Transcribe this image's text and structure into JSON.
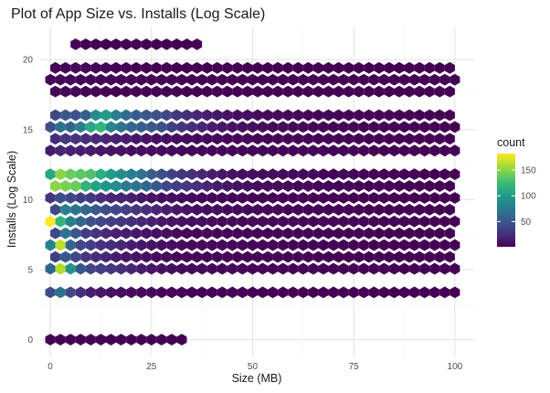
{
  "chart_data": {
    "type": "hexbin",
    "title": "Plot of App Size vs. Installs (Log Scale)",
    "xlabel": "Size (MB)",
    "ylabel": "Installs (Log Scale)",
    "xlim": [
      -2.5,
      105
    ],
    "ylim": [
      -1.2,
      22.3
    ],
    "x_ticks": [
      0,
      25,
      50,
      75,
      100
    ],
    "y_ticks": [
      0,
      5,
      10,
      15,
      20
    ],
    "grid": true,
    "legend": {
      "title": "count",
      "position": "right",
      "range": [
        1,
        182
      ],
      "ticks": [
        50,
        100,
        150
      ]
    },
    "hex_grid": {
      "x0": 0,
      "dx": 2.5,
      "y0": 0.0,
      "dy": 0.8438
    },
    "colors": {
      "viridis": [
        "#440154",
        "#482878",
        "#3e4989",
        "#31688e",
        "#26828e",
        "#1f9e89",
        "#35b779",
        "#6ece58",
        "#b5de2b",
        "#fde725"
      ],
      "grid_major": "#e3e3e3",
      "grid_minor": "#f3f3f3",
      "text": "#1a1a1a",
      "tick_text": "#4d4d4d"
    },
    "rows": [
      {
        "row": 0,
        "counts": [
          3,
          2,
          2,
          2,
          1,
          1,
          1,
          1,
          1,
          1,
          1,
          1,
          1,
          1,
          0,
          0,
          0,
          0,
          0,
          0,
          0,
          0,
          0,
          0,
          0,
          0,
          0,
          0,
          0,
          0,
          0,
          0,
          0,
          0,
          0,
          0,
          0,
          0,
          0,
          0,
          0,
          0,
          0,
          0,
          0,
          0
        ]
      },
      {
        "row": 4,
        "counts": [
          45,
          70,
          40,
          25,
          15,
          12,
          10,
          8,
          6,
          5,
          4,
          3,
          3,
          3,
          2,
          2,
          2,
          2,
          2,
          2,
          1,
          1,
          1,
          1,
          1,
          1,
          1,
          1,
          1,
          1,
          1,
          1,
          1,
          1,
          1,
          1,
          1,
          1,
          1,
          1,
          1,
          1,
          1,
          1,
          1,
          1
        ]
      },
      {
        "row": 6,
        "counts": [
          60,
          160,
          95,
          50,
          40,
          35,
          30,
          25,
          20,
          15,
          12,
          10,
          8,
          7,
          6,
          5,
          5,
          4,
          4,
          4,
          3,
          3,
          3,
          3,
          2,
          2,
          2,
          2,
          2,
          2,
          2,
          2,
          2,
          2,
          1,
          1,
          1,
          1,
          1,
          1,
          1,
          1,
          1,
          1,
          1,
          1
        ]
      },
      {
        "row": 7,
        "counts": [
          35,
          50,
          40,
          30,
          25,
          20,
          15,
          12,
          10,
          8,
          6,
          5,
          4,
          4,
          3,
          3,
          3,
          3,
          2,
          2,
          2,
          2,
          2,
          2,
          2,
          1,
          1,
          1,
          1,
          1,
          1,
          1,
          1,
          1,
          1,
          1,
          1,
          1,
          1,
          1,
          1,
          1,
          0,
          0,
          0,
          0
        ]
      },
      {
        "row": 8,
        "counts": [
          80,
          165,
          60,
          40,
          35,
          28,
          24,
          20,
          16,
          12,
          10,
          8,
          7,
          6,
          5,
          5,
          4,
          4,
          4,
          3,
          3,
          3,
          3,
          2,
          2,
          2,
          2,
          2,
          2,
          2,
          1,
          1,
          1,
          1,
          1,
          1,
          1,
          1,
          1,
          1,
          1,
          1,
          1,
          1,
          1,
          1
        ]
      },
      {
        "row": 9,
        "counts": [
          40,
          70,
          50,
          35,
          28,
          22,
          18,
          15,
          12,
          10,
          8,
          7,
          6,
          5,
          4,
          4,
          3,
          3,
          3,
          3,
          2,
          2,
          2,
          2,
          2,
          2,
          1,
          1,
          1,
          1,
          1,
          1,
          1,
          1,
          1,
          1,
          1,
          1,
          1,
          1,
          1,
          1,
          1,
          1,
          1,
          0
        ]
      },
      {
        "row": 10,
        "counts": [
          182,
          120,
          80,
          60,
          45,
          40,
          35,
          30,
          25,
          20,
          16,
          12,
          10,
          9,
          8,
          7,
          6,
          5,
          5,
          4,
          4,
          4,
          3,
          3,
          3,
          3,
          2,
          2,
          2,
          2,
          2,
          2,
          2,
          1,
          1,
          1,
          1,
          1,
          1,
          1,
          1,
          1,
          1,
          1,
          1,
          1
        ]
      },
      {
        "row": 11,
        "counts": [
          40,
          80,
          70,
          60,
          50,
          45,
          40,
          35,
          30,
          25,
          20,
          15,
          12,
          10,
          8,
          7,
          6,
          5,
          5,
          4,
          4,
          4,
          3,
          3,
          3,
          3,
          2,
          2,
          2,
          2,
          2,
          1,
          1,
          1,
          1,
          1,
          1,
          1,
          1,
          1,
          1,
          1,
          1,
          1,
          1,
          1
        ]
      },
      {
        "row": 12,
        "counts": [
          30,
          45,
          40,
          35,
          30,
          25,
          20,
          18,
          15,
          12,
          10,
          8,
          7,
          6,
          5,
          4,
          4,
          4,
          3,
          3,
          3,
          2,
          2,
          2,
          2,
          2,
          2,
          2,
          2,
          1,
          1,
          1,
          1,
          1,
          1,
          1,
          1,
          1,
          1,
          1,
          1,
          1,
          1,
          1,
          1,
          1
        ]
      },
      {
        "row": 13,
        "counts": [
          150,
          145,
          140,
          120,
          105,
          95,
          90,
          75,
          70,
          60,
          50,
          40,
          35,
          30,
          25,
          20,
          15,
          12,
          10,
          8,
          7,
          6,
          5,
          5,
          4,
          4,
          3,
          3,
          3,
          3,
          2,
          2,
          2,
          2,
          2,
          2,
          2,
          1,
          1,
          1,
          1,
          1,
          1,
          1,
          1,
          1
        ]
      },
      {
        "row": 14,
        "counts": [
          110,
          150,
          140,
          135,
          130,
          115,
          100,
          90,
          80,
          70,
          55,
          45,
          35,
          30,
          25,
          20,
          15,
          12,
          10,
          8,
          7,
          6,
          6,
          5,
          5,
          4,
          4,
          3,
          3,
          3,
          2,
          2,
          2,
          2,
          2,
          2,
          2,
          1,
          1,
          1,
          1,
          1,
          1,
          1,
          1,
          1
        ]
      },
      {
        "row": 16,
        "counts": [
          15,
          20,
          18,
          16,
          14,
          12,
          10,
          9,
          8,
          7,
          6,
          5,
          5,
          4,
          4,
          4,
          3,
          3,
          3,
          3,
          2,
          2,
          2,
          2,
          2,
          2,
          2,
          2,
          2,
          2,
          2,
          1,
          1,
          1,
          1,
          1,
          1,
          1,
          1,
          1,
          1,
          1,
          1,
          1,
          1,
          1
        ]
      },
      {
        "row": 17,
        "counts": [
          25,
          30,
          28,
          25,
          22,
          20,
          18,
          15,
          12,
          10,
          8,
          7,
          6,
          5,
          5,
          4,
          4,
          3,
          3,
          3,
          3,
          2,
          2,
          2,
          2,
          2,
          2,
          2,
          2,
          2,
          1,
          1,
          1,
          1,
          1,
          1,
          1,
          1,
          1,
          1,
          1,
          1,
          1,
          1,
          1,
          1
        ]
      },
      {
        "row": 18,
        "counts": [
          45,
          65,
          60,
          80,
          110,
          120,
          85,
          70,
          60,
          55,
          50,
          45,
          35,
          30,
          25,
          20,
          15,
          12,
          10,
          8,
          7,
          6,
          5,
          5,
          4,
          4,
          3,
          3,
          3,
          3,
          2,
          2,
          2,
          2,
          2,
          2,
          2,
          1,
          1,
          1,
          1,
          1,
          1,
          1,
          1,
          1
        ]
      },
      {
        "row": 19,
        "counts": [
          40,
          50,
          45,
          55,
          90,
          100,
          80,
          65,
          55,
          50,
          45,
          40,
          30,
          25,
          20,
          15,
          12,
          10,
          8,
          7,
          6,
          5,
          5,
          4,
          4,
          3,
          3,
          3,
          2,
          2,
          2,
          2,
          2,
          2,
          1,
          1,
          1,
          1,
          1,
          1,
          1,
          1,
          1,
          1,
          1,
          1
        ]
      },
      {
        "row": 20,
        "counts": [
          0,
          0,
          0,
          0,
          0,
          0,
          0,
          0,
          0,
          0,
          0,
          0,
          0,
          0,
          0,
          0,
          0,
          0,
          0,
          0,
          0,
          0,
          0,
          0,
          0,
          0,
          0,
          0,
          0,
          0,
          0,
          0,
          0,
          0,
          0,
          0,
          0,
          0,
          0,
          0,
          0,
          0,
          0,
          0,
          0,
          0
        ]
      },
      {
        "row": 21,
        "counts": [
          3,
          4,
          2,
          2,
          2,
          2,
          1,
          1,
          1,
          1,
          1,
          1,
          1,
          1,
          1,
          1,
          1,
          1,
          1,
          1,
          1,
          1,
          1,
          1,
          1,
          1,
          1,
          1,
          1,
          1,
          1,
          1,
          1,
          1,
          1,
          1,
          1,
          1,
          1,
          1,
          1,
          1,
          1,
          1,
          1,
          1
        ]
      },
      {
        "row": 22,
        "counts": [
          2,
          3,
          3,
          2,
          2,
          2,
          2,
          2,
          1,
          1,
          1,
          1,
          1,
          1,
          1,
          1,
          1,
          1,
          1,
          1,
          1,
          1,
          1,
          1,
          1,
          1,
          1,
          1,
          1,
          1,
          1,
          1,
          1,
          1,
          1,
          1,
          1,
          1,
          1,
          1,
          1,
          1,
          1,
          1,
          1,
          1
        ]
      },
      {
        "row": 23,
        "counts": [
          3,
          4,
          5,
          5,
          4,
          3,
          2,
          2,
          1,
          1,
          1,
          1,
          1,
          1,
          1,
          1,
          1,
          1,
          1,
          1,
          1,
          1,
          1,
          1,
          1,
          1,
          1,
          1,
          1,
          1,
          1,
          1,
          1,
          1,
          1,
          1,
          1,
          1,
          1,
          1,
          1,
          1,
          1,
          1,
          1,
          1
        ]
      },
      {
        "row": 24,
        "counts": [
          0,
          0,
          0,
          0,
          0,
          0,
          0,
          0,
          0,
          0,
          0,
          0,
          0,
          0,
          0,
          0,
          0,
          0,
          0,
          0,
          0,
          0,
          0,
          0,
          0,
          0,
          0,
          0,
          0,
          0,
          0,
          0,
          0,
          0,
          0,
          0,
          0,
          0,
          0,
          0,
          0,
          0,
          0,
          0,
          0,
          0
        ]
      },
      {
        "row": 25,
        "counts": [
          0,
          0,
          2,
          1,
          1,
          1,
          1,
          1,
          1,
          1,
          1,
          1,
          1,
          1,
          1,
          0,
          0,
          0,
          0,
          0,
          0,
          0,
          0,
          0,
          0,
          0,
          0,
          0,
          0,
          0,
          0,
          0,
          0,
          0,
          0,
          0,
          0,
          0,
          0,
          0,
          0,
          0,
          0,
          0,
          0,
          0
        ]
      }
    ]
  }
}
